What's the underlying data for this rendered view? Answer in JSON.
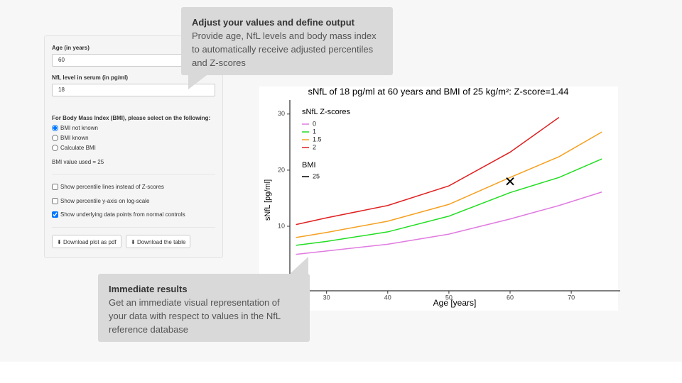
{
  "form": {
    "age_label": "Age (in years)",
    "age_value": "60",
    "nfl_label": "NfL level in serum (in pg/ml)",
    "nfl_value": "18",
    "bmi_prompt": "For Body Mass Index (BMI), please select on the following:",
    "bmi_options": [
      "BMI not known",
      "BMI known",
      "Calculate BMI"
    ],
    "bmi_selected": 0,
    "bmi_used": "BMI value used = 25",
    "checkboxes": [
      {
        "label": "Show percentile lines instead of Z-scores",
        "checked": false
      },
      {
        "label": "Show percentile y-axis on log-scale",
        "checked": false
      },
      {
        "label": "Show underlying data points from normal controls",
        "checked": true
      }
    ],
    "buttons": [
      "Download plot as pdf",
      "Download the table"
    ]
  },
  "callouts": [
    {
      "title": "Adjust your values and define output",
      "text": "Provide age, NfL levels and body mass index to automatically receive adjusted percentiles and Z-scores"
    },
    {
      "title": "Immediate results",
      "text": "Get an immediate visual representation of your data with respect to values in the NfL reference database"
    }
  ],
  "chart_data": {
    "type": "line",
    "title": "sNfL of 18 pg/ml at 60 years and BMI of 25 kg/m²: Z-score=1.44",
    "xlabel": "Age [years]",
    "ylabel": "sNfL [pg/ml]",
    "legend_title": "sNfL Z-scores",
    "x": [
      25,
      30,
      40,
      50,
      60,
      68,
      75
    ],
    "series": [
      {
        "name": "0",
        "color": "#e07be0",
        "values": [
          5.0,
          5.6,
          6.8,
          8.6,
          11.3,
          13.7,
          16.1
        ]
      },
      {
        "name": "1",
        "color": "#22dd22",
        "values": [
          6.6,
          7.3,
          9.0,
          11.8,
          16.0,
          18.7,
          22.0
        ]
      },
      {
        "name": "1.5",
        "color": "#f5a020",
        "values": [
          8.0,
          8.9,
          10.9,
          13.9,
          18.7,
          22.4,
          26.8
        ]
      },
      {
        "name": "2",
        "color": "#e02020",
        "values": [
          10.3,
          11.5,
          13.7,
          17.2,
          23.2,
          29.4,
          null
        ]
      }
    ],
    "marker": {
      "x": 60,
      "y": 18
    },
    "bmi_legend": {
      "title": "BMI",
      "name": "25",
      "color": "#000000"
    },
    "xlim": [
      24,
      78
    ],
    "ylim": [
      -1.5,
      32.5
    ],
    "xticks": [
      30,
      40,
      50,
      60,
      70
    ],
    "yticks": [
      10,
      20,
      30
    ]
  }
}
